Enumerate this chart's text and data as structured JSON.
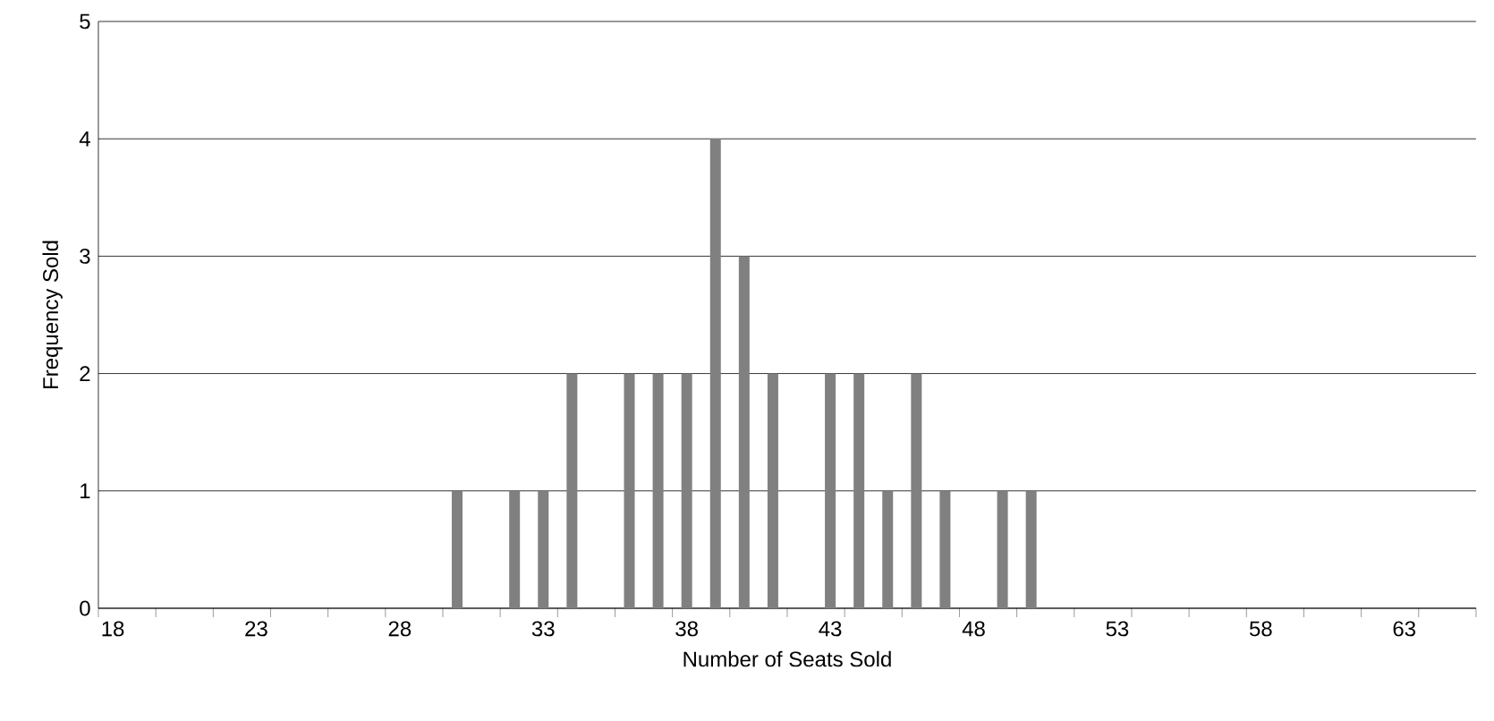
{
  "chart_data": {
    "type": "bar",
    "xlabel": "Number of Seats Sold",
    "ylabel": "Frequency Sold",
    "categories": [
      "18",
      null,
      null,
      null,
      null,
      "23",
      null,
      null,
      null,
      null,
      "28",
      null,
      null,
      null,
      null,
      "33",
      null,
      null,
      null,
      null,
      "38",
      null,
      null,
      null,
      null,
      "43",
      null,
      null,
      null,
      null,
      "48",
      null,
      null,
      null,
      null,
      "53",
      null,
      null,
      null,
      null,
      "58",
      null,
      null,
      null,
      null,
      "63",
      null,
      null
    ],
    "values": [
      0,
      0,
      0,
      0,
      0,
      0,
      0,
      0,
      0,
      0,
      0,
      0,
      1,
      0,
      1,
      1,
      2,
      0,
      2,
      2,
      2,
      4,
      3,
      2,
      0,
      2,
      2,
      1,
      2,
      1,
      0,
      1,
      1,
      0,
      0,
      0,
      0,
      0,
      0,
      0,
      0,
      0,
      0,
      0,
      0,
      0,
      0,
      0
    ],
    "color": "#808080",
    "ylim": [
      0,
      5
    ],
    "yticks": [
      0,
      1,
      2,
      3,
      4,
      5
    ],
    "grid": "y"
  }
}
